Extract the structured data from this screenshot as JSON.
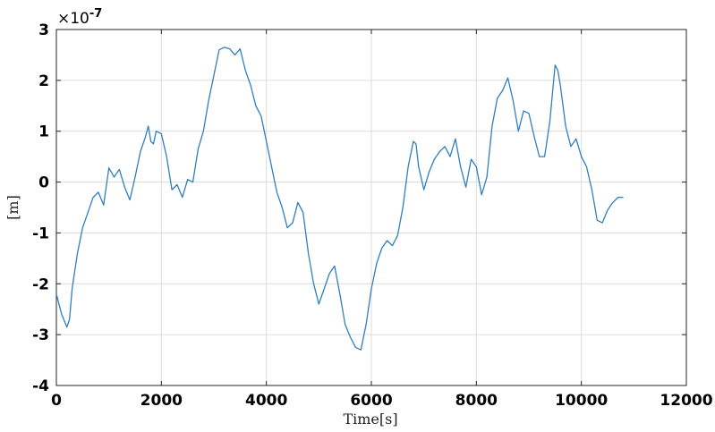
{
  "chart_data": {
    "type": "line",
    "title": "",
    "xlabel": "Time[s]",
    "ylabel": "[m]",
    "y_exponent_prefix": "×10",
    "y_exponent": "-7",
    "xlim": [
      0,
      12000
    ],
    "ylim": [
      -4,
      3
    ],
    "xticks": [
      0,
      2000,
      4000,
      6000,
      8000,
      10000,
      12000
    ],
    "xtick_labels": [
      "0",
      "2000",
      "4000",
      "6000",
      "8000",
      "10000",
      "12000"
    ],
    "yticks": [
      -4,
      -3,
      -2,
      -1,
      0,
      1,
      2,
      3
    ],
    "ytick_labels": [
      "-4",
      "-3",
      "-2",
      "-1",
      "0",
      "1",
      "2",
      "3"
    ],
    "grid": true,
    "legend": "none",
    "line_color": "#2f7fc1",
    "series": [
      {
        "x": [
          0,
          100,
          200,
          250,
          300,
          400,
          500,
          600,
          700,
          800,
          900,
          1000,
          1100,
          1200,
          1300,
          1400,
          1500,
          1600,
          1700,
          1750,
          1800,
          1850,
          1900,
          2000,
          2100,
          2200,
          2300,
          2400,
          2500,
          2600,
          2700,
          2800,
          2900,
          3000,
          3100,
          3200,
          3300,
          3400,
          3500,
          3600,
          3700,
          3800,
          3900,
          4000,
          4100,
          4200,
          4300,
          4400,
          4500,
          4600,
          4700,
          4800,
          4900,
          5000,
          5100,
          5200,
          5300,
          5400,
          5500,
          5600,
          5700,
          5800,
          5900,
          6000,
          6100,
          6200,
          6300,
          6400,
          6500,
          6600,
          6700,
          6800,
          6850,
          6900,
          7000,
          7100,
          7200,
          7300,
          7400,
          7500,
          7600,
          7700,
          7800,
          7900,
          8000,
          8100,
          8200,
          8300,
          8400,
          8500,
          8600,
          8700,
          8800,
          8900,
          9000,
          9100,
          9200,
          9300,
          9400,
          9500,
          9550,
          9600,
          9700,
          9800,
          9900,
          10000,
          10100,
          10200,
          10300,
          10400,
          10500,
          10600,
          10700,
          10800
        ],
        "y": [
          -2.2,
          -2.6,
          -2.85,
          -2.7,
          -2.1,
          -1.4,
          -0.9,
          -0.6,
          -0.3,
          -0.2,
          -0.45,
          0.28,
          0.1,
          0.25,
          -0.1,
          -0.35,
          0.1,
          0.6,
          0.9,
          1.1,
          0.8,
          0.75,
          1.0,
          0.95,
          0.5,
          -0.15,
          -0.05,
          -0.3,
          0.05,
          0.0,
          0.65,
          1.0,
          1.6,
          2.1,
          2.6,
          2.65,
          2.62,
          2.5,
          2.62,
          2.2,
          1.9,
          1.5,
          1.3,
          0.8,
          0.3,
          -0.2,
          -0.5,
          -0.9,
          -0.8,
          -0.4,
          -0.6,
          -1.4,
          -2.0,
          -2.4,
          -2.1,
          -1.8,
          -1.65,
          -2.2,
          -2.8,
          -3.05,
          -3.25,
          -3.3,
          -2.8,
          -2.1,
          -1.6,
          -1.3,
          -1.15,
          -1.25,
          -1.05,
          -0.5,
          0.3,
          0.8,
          0.75,
          0.3,
          -0.15,
          0.2,
          0.45,
          0.6,
          0.7,
          0.5,
          0.85,
          0.3,
          -0.1,
          0.45,
          0.3,
          -0.25,
          0.1,
          1.1,
          1.65,
          1.8,
          2.05,
          1.6,
          1.0,
          1.4,
          1.35,
          0.9,
          0.5,
          0.5,
          1.2,
          2.3,
          2.2,
          1.9,
          1.1,
          0.7,
          0.85,
          0.5,
          0.3,
          -0.15,
          -0.75,
          -0.8,
          -0.55,
          -0.4,
          -0.3,
          -0.3
        ]
      }
    ]
  }
}
